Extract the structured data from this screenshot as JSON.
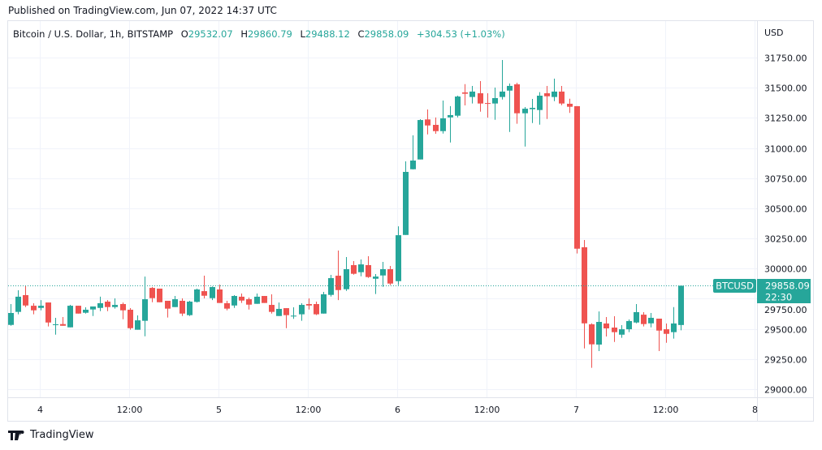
{
  "header": {
    "published": "Published on TradingView.com, Jun 07, 2022 14:37 UTC"
  },
  "legend": {
    "symbol": "Bitcoin / U.S. Dollar, 1h, BITSTAMP",
    "o_label": "O",
    "o": "29532.07",
    "h_label": "H",
    "h": "29860.79",
    "l_label": "L",
    "l": "29488.12",
    "c_label": "C",
    "c": "29858.09",
    "change": "+304.53 (+1.03%)"
  },
  "price_axis": {
    "currency": "USD"
  },
  "last_price": {
    "ticker": "BTCUSD",
    "price": "29858.09",
    "countdown": "22:30"
  },
  "footer": {
    "brand": "TradingView"
  },
  "colors": {
    "up": "#26a69a",
    "down": "#ef5350",
    "grid": "#f0f3fa",
    "border": "#e0e3eb",
    "text": "#131722"
  },
  "chart_data": {
    "type": "candlestick",
    "interval": "1h",
    "ylim": [
      28950,
      31850
    ],
    "y_ticks": [
      29000,
      29250,
      29500,
      29750,
      30000,
      30250,
      30500,
      30750,
      31000,
      31250,
      31500,
      31750
    ],
    "y_tick_labels": [
      "29000.00",
      "29250.00",
      "29500.00",
      "29750.00",
      "30000.00",
      "30250.00",
      "30500.00",
      "30750.00",
      "31000.00",
      "31250.00",
      "31500.00",
      "31750.00"
    ],
    "x_ticks": [
      "4",
      "12:00",
      "5",
      "12:00",
      "6",
      "12:00",
      "7",
      "12:00",
      "8"
    ],
    "grid": true,
    "ohlc_fields": [
      "open",
      "high",
      "low",
      "close"
    ],
    "candles": [
      [
        29533,
        29706,
        29526,
        29632
      ],
      [
        29641,
        29820,
        29621,
        29767
      ],
      [
        29780,
        29861,
        29681,
        29694
      ],
      [
        29692,
        29713,
        29621,
        29654
      ],
      [
        29674,
        29739,
        29654,
        29692
      ],
      [
        29719,
        29719,
        29520,
        29553
      ],
      [
        29533,
        29592,
        29452,
        29538
      ],
      [
        29540,
        29598,
        29526,
        29526
      ],
      [
        29513,
        29699,
        29513,
        29692
      ],
      [
        29692,
        29692,
        29627,
        29627
      ],
      [
        29634,
        29679,
        29627,
        29659
      ],
      [
        29661,
        29686,
        29607,
        29686
      ],
      [
        29674,
        29767,
        29647,
        29713
      ],
      [
        29726,
        29739,
        29647,
        29681
      ],
      [
        29681,
        29753,
        29668,
        29699
      ],
      [
        29706,
        29719,
        29580,
        29654
      ],
      [
        29659,
        29672,
        29493,
        29506
      ],
      [
        29493,
        29612,
        29493,
        29571
      ],
      [
        29567,
        29934,
        29439,
        29746
      ],
      [
        29840,
        29847,
        29721,
        29755
      ],
      [
        29834,
        29834,
        29721,
        29721
      ],
      [
        29733,
        29733,
        29594,
        29668
      ],
      [
        29681,
        29773,
        29681,
        29746
      ],
      [
        29733,
        29753,
        29607,
        29627
      ],
      [
        29614,
        29733,
        29607,
        29726
      ],
      [
        29724,
        29834,
        29719,
        29827
      ],
      [
        29813,
        29941,
        29753,
        29775
      ],
      [
        29755,
        29852,
        29739,
        29847
      ],
      [
        29827,
        29867,
        29715,
        29715
      ],
      [
        29713,
        29733,
        29654,
        29668
      ],
      [
        29694,
        29780,
        29674,
        29773
      ],
      [
        29767,
        29793,
        29715,
        29735
      ],
      [
        29746,
        29760,
        29661,
        29701
      ],
      [
        29708,
        29793,
        29708,
        29767
      ],
      [
        29773,
        29773,
        29715,
        29715
      ],
      [
        29699,
        29787,
        29627,
        29641
      ],
      [
        29607,
        29719,
        29607,
        29666
      ],
      [
        29672,
        29672,
        29506,
        29614
      ],
      [
        29603,
        29679,
        29583,
        29610
      ],
      [
        29621,
        29713,
        29567,
        29699
      ],
      [
        29706,
        29753,
        29661,
        29694
      ],
      [
        29706,
        29726,
        29614,
        29621
      ],
      [
        29627,
        29807,
        29627,
        29787
      ],
      [
        29782,
        29948,
        29768,
        29921
      ],
      [
        29941,
        30150,
        29739,
        29822
      ],
      [
        29829,
        30096,
        29815,
        29995
      ],
      [
        30029,
        30062,
        29950,
        29957
      ],
      [
        29970,
        30076,
        29936,
        30035
      ],
      [
        30029,
        30103,
        29923,
        29930
      ],
      [
        29916,
        29955,
        29789,
        29934
      ],
      [
        29943,
        30056,
        29849,
        29995
      ],
      [
        29995,
        30022,
        29863,
        29876
      ],
      [
        29896,
        30351,
        29863,
        30277
      ],
      [
        30279,
        30889,
        30279,
        30802
      ],
      [
        30824,
        31105,
        30822,
        30896
      ],
      [
        30905,
        31239,
        30905,
        31232
      ],
      [
        31237,
        31320,
        31113,
        31187
      ],
      [
        31192,
        31253,
        31118,
        31140
      ],
      [
        31140,
        31394,
        31120,
        31246
      ],
      [
        31254,
        31347,
        31046,
        31273
      ],
      [
        31268,
        31434,
        31254,
        31427
      ],
      [
        31461,
        31530,
        31353,
        31450
      ],
      [
        31423,
        31515,
        31369,
        31468
      ],
      [
        31454,
        31555,
        31301,
        31369
      ],
      [
        31373,
        31454,
        31252,
        31366
      ],
      [
        31369,
        31501,
        31234,
        31414
      ],
      [
        31423,
        31730,
        31402,
        31468
      ],
      [
        31476,
        31535,
        31133,
        31515
      ],
      [
        31528,
        31541,
        31201,
        31288
      ],
      [
        31288,
        31340,
        31012,
        31326
      ],
      [
        31322,
        31407,
        31207,
        31333
      ],
      [
        31315,
        31463,
        31194,
        31434
      ],
      [
        31454,
        31515,
        31241,
        31429
      ],
      [
        31423,
        31575,
        31389,
        31468
      ],
      [
        31468,
        31515,
        31355,
        31369
      ],
      [
        31367,
        31409,
        31291,
        31342
      ],
      [
        31347,
        31347,
        30125,
        30165
      ],
      [
        30177,
        30237,
        29338,
        29546
      ],
      [
        29538,
        29546,
        29177,
        29372
      ],
      [
        29370,
        29645,
        29316,
        29558
      ],
      [
        29545,
        29598,
        29437,
        29504
      ],
      [
        29511,
        29605,
        29392,
        29473
      ],
      [
        29452,
        29531,
        29426,
        29497
      ],
      [
        29497,
        29578,
        29473,
        29565
      ],
      [
        29553,
        29706,
        29546,
        29639
      ],
      [
        29618,
        29639,
        29520,
        29540
      ],
      [
        29546,
        29632,
        29513,
        29592
      ],
      [
        29585,
        29585,
        29316,
        29486
      ],
      [
        29497,
        29545,
        29385,
        29459
      ],
      [
        29473,
        29681,
        29419,
        29545
      ],
      [
        29532.07,
        29860.79,
        29488.12,
        29858.09
      ]
    ]
  }
}
